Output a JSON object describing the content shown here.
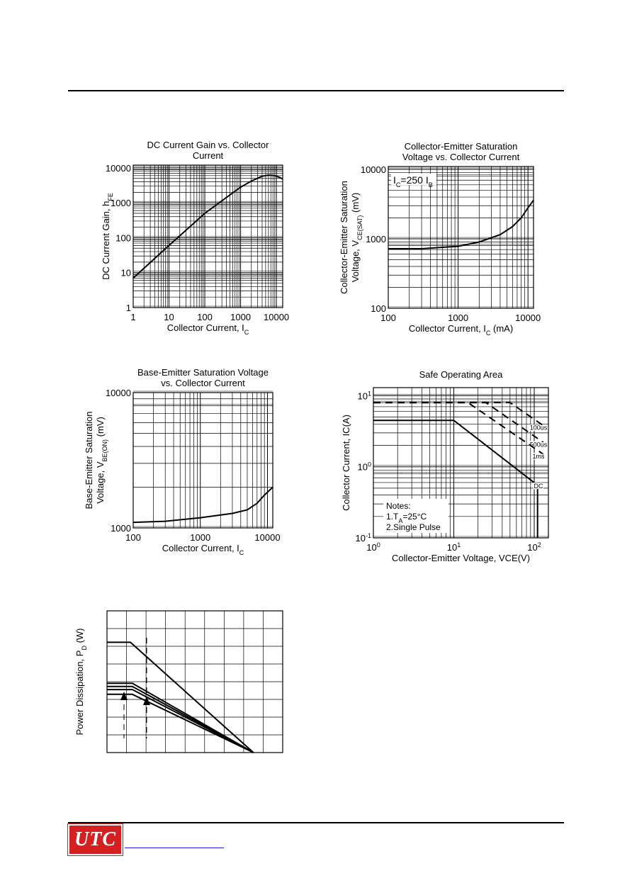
{
  "footer": {
    "logo_text": "UTC",
    "link_text": ""
  },
  "chart_data": [
    {
      "id": "hfe",
      "type": "line",
      "title_lines": [
        "DC Current Gain vs. Collector",
        "Current"
      ],
      "xlabel": "Collector Current, I",
      "xlabel_sub": "C",
      "ylabel": "DC Current Gain, h",
      "ylabel_sub": "FE",
      "xscale": "log",
      "yscale": "log",
      "xlim": [
        1,
        15000
      ],
      "ylim": [
        1,
        12000
      ],
      "xticks": [
        1,
        10,
        100,
        1000,
        10000
      ],
      "xticklabels": [
        "1",
        "10",
        "100",
        "1000",
        "10000"
      ],
      "yticks": [
        1,
        10,
        100,
        1000,
        10000
      ],
      "yticklabels": [
        "1",
        "10",
        "100",
        "1000",
        "10000"
      ],
      "grid": true,
      "series": [
        {
          "x": [
            1,
            10,
            100,
            1000,
            2000,
            4000,
            6000,
            9000,
            12000,
            15000
          ],
          "y": [
            7,
            60,
            500,
            2800,
            4200,
            5800,
            6200,
            6000,
            5400,
            4800
          ]
        }
      ]
    },
    {
      "id": "vcesat",
      "type": "line",
      "title_lines": [
        "Collector-Emitter Saturation",
        "Voltage vs. Collector Current"
      ],
      "xlabel": "Collector Current, I",
      "xlabel_sub": "C",
      "xlabel_tail": " (mA)",
      "ylabel_lines": [
        "Collector-Emitter Saturation",
        "Voltage, V"
      ],
      "ylabel_sub": "CE(SAT)",
      "ylabel_tail": " (mV)",
      "annotation": {
        "text": "I",
        "sub": "C",
        "mid": "=250 I",
        "sub2": "B"
      },
      "xscale": "log",
      "yscale": "log",
      "xlim": [
        100,
        12000
      ],
      "ylim": [
        100,
        11000
      ],
      "xticks": [
        100,
        1000,
        10000
      ],
      "xticklabels": [
        "100",
        "1000",
        "10000"
      ],
      "yticks": [
        100,
        1000,
        10000
      ],
      "yticklabels": [
        "100",
        "1000",
        "10000"
      ],
      "grid": true,
      "series": [
        {
          "x": [
            100,
            300,
            1000,
            2000,
            4000,
            6000,
            8000,
            10000,
            12000
          ],
          "y": [
            720,
            720,
            780,
            900,
            1150,
            1500,
            2000,
            2800,
            3600
          ]
        }
      ]
    },
    {
      "id": "vbesat",
      "type": "line",
      "title_lines": [
        "Base-Emitter Saturation Voltage",
        "vs. Collector Current"
      ],
      "xlabel": "Collector Current, I",
      "xlabel_sub": "C",
      "ylabel_lines": [
        "Base-Emitter Saturation",
        "Voltage, V"
      ],
      "ylabel_sub": "BE(ON)",
      "ylabel_tail": " (mV)",
      "xscale": "log",
      "yscale": "log",
      "xlim": [
        100,
        12000
      ],
      "ylim": [
        1000,
        10000
      ],
      "xticks": [
        100,
        1000,
        10000
      ],
      "xticklabels": [
        "100",
        "1000",
        "10000"
      ],
      "yticks": [
        1000,
        10000
      ],
      "yticklabels": [
        "1000",
        "10000"
      ],
      "grid": true,
      "series": [
        {
          "x": [
            100,
            300,
            1000,
            3000,
            5000,
            7000,
            9000,
            12000
          ],
          "y": [
            1100,
            1120,
            1190,
            1280,
            1360,
            1520,
            1750,
            2000
          ]
        }
      ]
    },
    {
      "id": "soa",
      "type": "line",
      "title_lines": [
        "Safe Operating Area"
      ],
      "xlabel": "Collector-Emitter Voltage, VCE(V)",
      "ylabel": "Collector Current, IC(A)",
      "xscale": "log",
      "yscale": "log",
      "xlim": [
        1,
        150
      ],
      "ylim": [
        0.1,
        13
      ],
      "xticks": [
        1,
        10,
        100
      ],
      "xticklabels": [
        [
          "10",
          "0"
        ],
        [
          "10",
          "1"
        ],
        [
          "10",
          "2"
        ]
      ],
      "yticks": [
        0.1,
        1,
        10
      ],
      "yticklabels": [
        [
          "10",
          "-1"
        ],
        [
          "10",
          "0"
        ],
        [
          "10",
          "1"
        ]
      ],
      "grid": true,
      "notes": [
        "Notes:",
        "1.T",
        "A",
        "=25°C",
        "2.Single Pulse"
      ],
      "series": [
        {
          "name": "100us",
          "dashed": true,
          "x": [
            1,
            50,
            130
          ],
          "y": [
            8,
            8,
            3.8
          ]
        },
        {
          "name": "500us",
          "dashed": true,
          "x": [
            1,
            25,
            130
          ],
          "y": [
            8,
            8,
            2.2
          ]
        },
        {
          "name": "1ms",
          "dashed": true,
          "x": [
            1,
            15,
            130
          ],
          "y": [
            8,
            8,
            1.5
          ]
        },
        {
          "name": "DC",
          "dashed": false,
          "x": [
            1,
            10,
            110,
            110
          ],
          "y": [
            4.5,
            4.5,
            0.55,
            0.1
          ]
        }
      ]
    },
    {
      "id": "pd",
      "type": "line",
      "title_lines": [],
      "xlabel": "",
      "ylabel": "Power Dissipation, P",
      "ylabel_sub": "D",
      "ylabel_tail": " (W)",
      "xscale": "linear",
      "yscale": "linear",
      "xlim": [
        0,
        9
      ],
      "ylim": [
        0,
        9
      ],
      "xticks": [],
      "yticks": [],
      "grid": true,
      "series": [
        {
          "x": [
            0,
            1.2,
            7.5
          ],
          "y": [
            7.0,
            7.0,
            0
          ]
        },
        {
          "x": [
            0,
            1.3,
            7.5
          ],
          "y": [
            4.4,
            4.4,
            0
          ]
        },
        {
          "x": [
            0,
            1.3,
            7.5
          ],
          "y": [
            4.2,
            4.2,
            0
          ]
        },
        {
          "x": [
            0,
            1.3,
            7.5
          ],
          "y": [
            4.0,
            4.0,
            0
          ]
        },
        {
          "x": [
            0,
            1.3,
            7.5
          ],
          "y": [
            3.7,
            3.7,
            0
          ]
        }
      ]
    }
  ]
}
